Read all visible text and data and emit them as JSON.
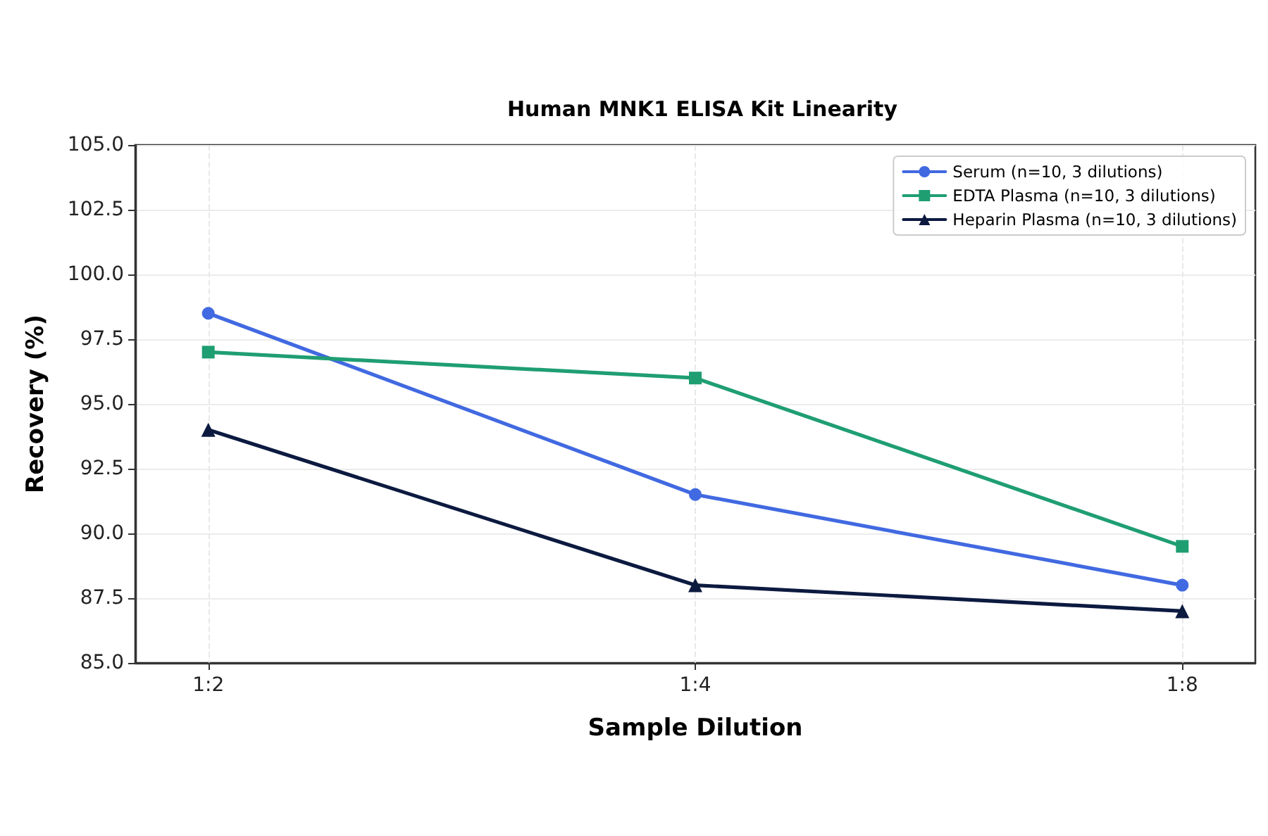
{
  "chart_data": {
    "type": "line",
    "title": "Human MNK1 ELISA Kit Linearity",
    "xlabel": "Sample Dilution",
    "ylabel": "Recovery (%)",
    "categories": [
      "1:2",
      "1:4",
      "1:8"
    ],
    "series": [
      {
        "name": "Serum (n=10, 3 dilutions)",
        "color": "#4169e1",
        "marker": "circle",
        "values": [
          98.5,
          91.5,
          88.0
        ]
      },
      {
        "name": "EDTA Plasma (n=10, 3 dilutions)",
        "color": "#1f9e72",
        "marker": "square",
        "values": [
          97.0,
          96.0,
          89.5
        ]
      },
      {
        "name": "Heparin Plasma (n=10, 3 dilutions)",
        "color": "#0c1a40",
        "marker": "triangle",
        "values": [
          94.0,
          88.0,
          87.0
        ]
      }
    ],
    "ylim": [
      85,
      105
    ],
    "yticks": [
      {
        "value": 85,
        "label": "85.0"
      },
      87.5,
      {
        "value": 90,
        "label": "90.0"
      },
      92.5,
      {
        "value": 95,
        "label": "95.0"
      },
      97.5,
      {
        "value": 100,
        "label": "100.0"
      },
      102.5,
      {
        "value": 105,
        "label": "105.0"
      }
    ],
    "grid": true,
    "legend": "top right",
    "line_style": "solid"
  }
}
